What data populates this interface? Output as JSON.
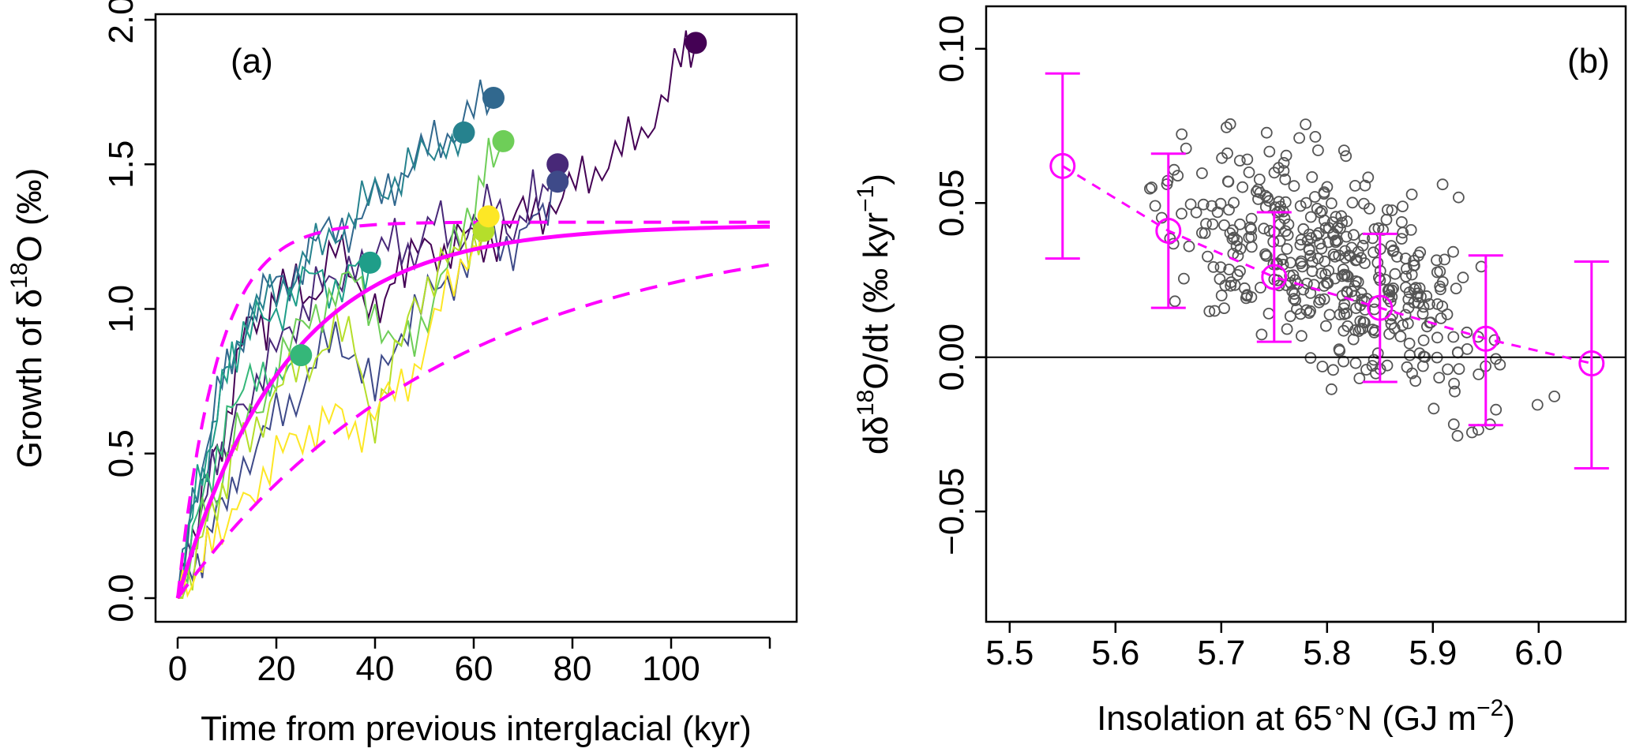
{
  "chart_data": [
    {
      "type": "line",
      "panel_label": "(a)",
      "xlabel": "Time from previous interglacial (kyr)",
      "ylabel_parts": [
        "Growth of δ",
        "18",
        "O (‰)"
      ],
      "xlim": [
        0,
        120
      ],
      "ylim": [
        0,
        2
      ],
      "xticks": [
        "0",
        "20",
        "40",
        "60",
        "80",
        "100"
      ],
      "yticks": [
        "0.0",
        "0.5",
        "1.0",
        "1.5",
        "2.0"
      ],
      "fit_color": "#ff00ff",
      "fit": {
        "asymptote": 1.29,
        "tau_kyr": 22
      },
      "fit_upper": {
        "asymptote": 1.3,
        "tau_kyr": 8
      },
      "fit_lower": {
        "asymptote": 1.3,
        "tau_kyr": 55
      },
      "series": [
        {
          "color": "#440154",
          "end": [
            105,
            1.92
          ],
          "points": [
            [
              0,
              0
            ],
            [
              3,
              0.22
            ],
            [
              6,
              0.42
            ],
            [
              9,
              0.55
            ],
            [
              12,
              0.78
            ],
            [
              14,
              0.95
            ],
            [
              16,
              1.0
            ],
            [
              18,
              0.9
            ],
            [
              20,
              1.02
            ],
            [
              24,
              1.1
            ],
            [
              28,
              1.05
            ],
            [
              32,
              1.2
            ],
            [
              36,
              1.12
            ],
            [
              40,
              1.0
            ],
            [
              43,
              1.08
            ],
            [
              46,
              1.12
            ],
            [
              50,
              1.22
            ],
            [
              54,
              1.2
            ],
            [
              58,
              1.25
            ],
            [
              62,
              1.22
            ],
            [
              66,
              1.28
            ],
            [
              70,
              1.32
            ],
            [
              74,
              1.35
            ],
            [
              78,
              1.38
            ],
            [
              82,
              1.45
            ],
            [
              86,
              1.5
            ],
            [
              90,
              1.55
            ],
            [
              94,
              1.6
            ],
            [
              98,
              1.72
            ],
            [
              102,
              1.85
            ],
            [
              105,
              1.92
            ]
          ]
        },
        {
          "color": "#482878",
          "end": [
            77,
            1.5
          ],
          "points": [
            [
              0,
              0
            ],
            [
              3,
              0.2
            ],
            [
              6,
              0.38
            ],
            [
              9,
              0.5
            ],
            [
              12,
              0.65
            ],
            [
              16,
              0.75
            ],
            [
              20,
              0.85
            ],
            [
              24,
              0.95
            ],
            [
              28,
              1.1
            ],
            [
              32,
              1.05
            ],
            [
              36,
              1.2
            ],
            [
              40,
              1.15
            ],
            [
              44,
              1.25
            ],
            [
              48,
              1.2
            ],
            [
              52,
              1.3
            ],
            [
              56,
              1.25
            ],
            [
              60,
              1.3
            ],
            [
              64,
              1.35
            ],
            [
              68,
              1.28
            ],
            [
              72,
              1.4
            ],
            [
              75,
              1.45
            ],
            [
              77,
              1.5
            ]
          ]
        },
        {
          "color": "#3e4a89",
          "end": [
            77,
            1.44
          ],
          "points": [
            [
              0,
              0
            ],
            [
              3,
              0.1
            ],
            [
              6,
              0.2
            ],
            [
              9,
              0.32
            ],
            [
              12,
              0.45
            ],
            [
              16,
              0.52
            ],
            [
              20,
              0.62
            ],
            [
              24,
              0.7
            ],
            [
              28,
              0.82
            ],
            [
              32,
              0.9
            ],
            [
              36,
              0.85
            ],
            [
              40,
              0.7
            ],
            [
              44,
              0.88
            ],
            [
              48,
              1.0
            ],
            [
              52,
              1.05
            ],
            [
              56,
              1.12
            ],
            [
              60,
              1.2
            ],
            [
              64,
              1.25
            ],
            [
              68,
              1.22
            ],
            [
              72,
              1.3
            ],
            [
              75,
              1.38
            ],
            [
              77,
              1.44
            ]
          ]
        },
        {
          "color": "#31688e",
          "end": [
            64,
            1.73
          ],
          "points": [
            [
              0,
              0
            ],
            [
              3,
              0.3
            ],
            [
              6,
              0.55
            ],
            [
              9,
              0.75
            ],
            [
              12,
              0.9
            ],
            [
              16,
              1.0
            ],
            [
              20,
              1.1
            ],
            [
              24,
              1.12
            ],
            [
              28,
              1.22
            ],
            [
              32,
              1.3
            ],
            [
              36,
              1.28
            ],
            [
              40,
              1.38
            ],
            [
              44,
              1.45
            ],
            [
              48,
              1.5
            ],
            [
              52,
              1.58
            ],
            [
              56,
              1.62
            ],
            [
              60,
              1.68
            ],
            [
              64,
              1.73
            ]
          ]
        },
        {
          "color": "#26828e",
          "end": [
            58,
            1.61
          ],
          "points": [
            [
              0,
              0
            ],
            [
              3,
              0.28
            ],
            [
              6,
              0.5
            ],
            [
              9,
              0.72
            ],
            [
              12,
              0.88
            ],
            [
              16,
              0.98
            ],
            [
              20,
              1.08
            ],
            [
              24,
              1.12
            ],
            [
              28,
              1.2
            ],
            [
              32,
              1.28
            ],
            [
              36,
              1.32
            ],
            [
              40,
              1.4
            ],
            [
              44,
              1.45
            ],
            [
              48,
              1.5
            ],
            [
              52,
              1.55
            ],
            [
              58,
              1.61
            ]
          ]
        },
        {
          "color": "#1f9e89",
          "end": [
            39,
            1.16
          ],
          "points": [
            [
              0,
              0
            ],
            [
              3,
              0.3
            ],
            [
              6,
              0.5
            ],
            [
              9,
              0.72
            ],
            [
              12,
              0.85
            ],
            [
              16,
              0.95
            ],
            [
              20,
              1.0
            ],
            [
              24,
              1.05
            ],
            [
              28,
              1.12
            ],
            [
              32,
              1.08
            ],
            [
              36,
              1.12
            ],
            [
              39,
              1.16
            ]
          ]
        },
        {
          "color": "#35b779",
          "end": [
            25,
            0.84
          ],
          "points": [
            [
              0,
              0
            ],
            [
              3,
              0.2
            ],
            [
              6,
              0.4
            ],
            [
              9,
              0.55
            ],
            [
              12,
              0.68
            ],
            [
              16,
              0.75
            ],
            [
              20,
              0.8
            ],
            [
              25,
              0.84
            ]
          ]
        },
        {
          "color": "#6ece58",
          "end": [
            66,
            1.58
          ],
          "points": [
            [
              0,
              0
            ],
            [
              3,
              0.15
            ],
            [
              6,
              0.3
            ],
            [
              9,
              0.42
            ],
            [
              12,
              0.55
            ],
            [
              16,
              0.65
            ],
            [
              20,
              0.8
            ],
            [
              24,
              0.9
            ],
            [
              28,
              1.0
            ],
            [
              32,
              1.05
            ],
            [
              36,
              1.1
            ],
            [
              40,
              1.0
            ],
            [
              44,
              0.85
            ],
            [
              48,
              0.9
            ],
            [
              52,
              1.05
            ],
            [
              56,
              1.2
            ],
            [
              60,
              1.35
            ],
            [
              63,
              1.5
            ],
            [
              66,
              1.58
            ]
          ]
        },
        {
          "color": "#b5de2b",
          "end": [
            62,
            1.27
          ],
          "points": [
            [
              0,
              0
            ],
            [
              3,
              0.12
            ],
            [
              6,
              0.25
            ],
            [
              9,
              0.38
            ],
            [
              12,
              0.5
            ],
            [
              16,
              0.6
            ],
            [
              20,
              0.72
            ],
            [
              24,
              0.78
            ],
            [
              28,
              0.85
            ],
            [
              32,
              0.92
            ],
            [
              36,
              0.88
            ],
            [
              40,
              0.6
            ],
            [
              44,
              0.8
            ],
            [
              48,
              1.05
            ],
            [
              52,
              1.1
            ],
            [
              56,
              1.18
            ],
            [
              59,
              1.22
            ],
            [
              62,
              1.27
            ]
          ]
        },
        {
          "color": "#fde725",
          "end": [
            63,
            1.32
          ],
          "points": [
            [
              0,
              0
            ],
            [
              3,
              0.08
            ],
            [
              6,
              0.15
            ],
            [
              9,
              0.25
            ],
            [
              12,
              0.32
            ],
            [
              16,
              0.4
            ],
            [
              20,
              0.48
            ],
            [
              24,
              0.55
            ],
            [
              28,
              0.6
            ],
            [
              32,
              0.62
            ],
            [
              36,
              0.58
            ],
            [
              40,
              0.65
            ],
            [
              44,
              0.7
            ],
            [
              48,
              0.8
            ],
            [
              52,
              0.95
            ],
            [
              56,
              1.1
            ],
            [
              60,
              1.25
            ],
            [
              63,
              1.32
            ]
          ]
        }
      ]
    },
    {
      "type": "scatter",
      "panel_label": "(b)",
      "xlabel_parts": [
        "Insolation at 65",
        "∘",
        "N (GJ m",
        "−2",
        ")"
      ],
      "ylabel_parts": [
        "dδ",
        "18",
        "O/dt (‰ kyr",
        "−1",
        ")"
      ],
      "xlim": [
        5.48,
        6.08
      ],
      "ylim": [
        -0.085,
        0.113
      ],
      "xticks": [
        "5.5",
        "5.6",
        "5.7",
        "5.8",
        "5.9",
        "6.0"
      ],
      "yticks": [
        "−0.05",
        "0.00",
        "0.05",
        "0.10"
      ],
      "zero_line": 0,
      "point_color": "#555555",
      "bin_color": "#ff00ff",
      "bins": [
        {
          "x": 5.55,
          "mean": 0.062,
          "low": 0.032,
          "high": 0.092
        },
        {
          "x": 5.65,
          "mean": 0.041,
          "low": 0.016,
          "high": 0.066
        },
        {
          "x": 5.75,
          "mean": 0.026,
          "low": 0.005,
          "high": 0.047
        },
        {
          "x": 5.85,
          "mean": 0.016,
          "low": -0.008,
          "high": 0.04
        },
        {
          "x": 5.95,
          "mean": 0.006,
          "low": -0.022,
          "high": 0.033
        },
        {
          "x": 6.05,
          "mean": -0.002,
          "low": -0.036,
          "high": 0.031
        }
      ],
      "n_points": 420
    }
  ]
}
